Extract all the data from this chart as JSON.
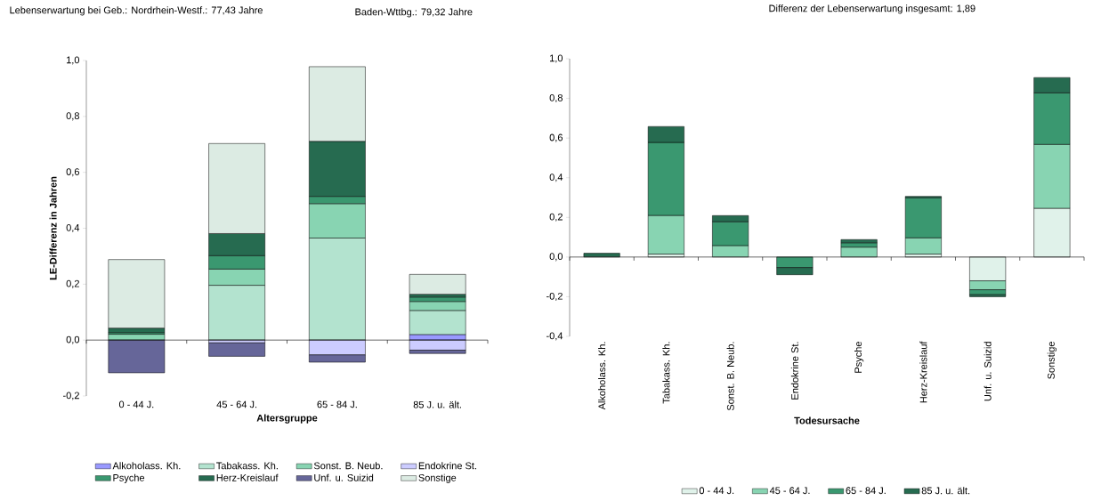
{
  "chart_data": [
    {
      "type": "bar",
      "stacked": true,
      "title": "Lebenserwartung bei Geb.: Nordrhein-Westf.: 77,43 Jahre",
      "annotations": [
        "Baden-Wttbg.: 79,32 Jahre"
      ],
      "xlabel": "Altersgruppe",
      "ylabel": "LE-Differenz in Jahren",
      "legend": "bottom",
      "categories": [
        "0 - 44 J.",
        "45 - 64 J.",
        "65 - 84 J.",
        "85 J. u. ält."
      ],
      "series": [
        {
          "name": "Alkoholass. Kh.",
          "color": "#9999ff",
          "values": [
            0,
            0,
            0,
            0.02
          ]
        },
        {
          "name": "Tabakass. Kh.",
          "color": "#b3e3cf",
          "values": [
            null,
            0.196,
            0.365,
            0.086
          ]
        },
        {
          "name": "Sonst. B. Neub.",
          "color": "#88d4b2",
          "values": [
            0.021,
            0.058,
            0.123,
            0.032
          ]
        },
        {
          "name": "Endokrine St.",
          "color": "#ccccff",
          "values": [
            0,
            -0.01,
            -0.053,
            -0.036
          ]
        },
        {
          "name": "Psyche",
          "color": "#3a9870",
          "values": [
            0.006,
            0.048,
            0.026,
            0.016
          ]
        },
        {
          "name": "Herz-Kreislauf",
          "color": "#266b50",
          "values": [
            0.016,
            0.079,
            0.197,
            0.01
          ]
        },
        {
          "name": "Unf. u. Suizid",
          "color": "#666699",
          "values": [
            -0.117,
            -0.048,
            -0.026,
            -0.012
          ]
        },
        {
          "name": "Sonstige",
          "color": "#dcebe3",
          "values": [
            0.245,
            0.322,
            0.267,
            0.071
          ]
        }
      ],
      "ylim": [
        -0.2,
        1.0
      ],
      "yticks": [
        {
          "value": -0.2,
          "label": "-0,2"
        },
        {
          "value": 0,
          "label": "0,0"
        },
        {
          "value": 0.2,
          "label": "0,2"
        },
        {
          "value": 0.4,
          "label": "0,4"
        },
        {
          "value": 0.6,
          "label": "0,6"
        },
        {
          "value": 0.8,
          "label": "0,8"
        },
        {
          "value": 1.0,
          "label": "1,0"
        }
      ]
    },
    {
      "type": "bar",
      "stacked": true,
      "title": "Differenz der Lebenserwartung insgesamt: 1,89",
      "xlabel": "Todesursache",
      "legend": "bottom",
      "categories": [
        "Alkoholass. Kh.",
        "Tabakass. Kh.",
        "Sonst. B. Neub.",
        "Endokrine St.",
        "Psyche",
        "Herz-Kreislauf",
        "Unf. u. Suizid",
        "Sonstige"
      ],
      "series": [
        {
          "name": "0 - 44 J.",
          "color": "#e0f2ea",
          "values": [
            0,
            0.015,
            0,
            0,
            0,
            0.015,
            -0.12,
            0.246
          ]
        },
        {
          "name": "45 - 64 J.",
          "color": "#88d4b2",
          "values": [
            0,
            0.195,
            0.058,
            null,
            0.05,
            0.082,
            -0.045,
            0.322
          ]
        },
        {
          "name": "65 - 84 J.",
          "color": "#3a9870",
          "values": [
            null,
            0.368,
            0.12,
            -0.053,
            0.022,
            0.202,
            -0.025,
            0.26
          ]
        },
        {
          "name": "85 J. u. ält.",
          "color": "#266b50",
          "values": [
            0.019,
            0.08,
            0.031,
            -0.036,
            0.016,
            0.007,
            -0.01,
            0.077
          ]
        }
      ],
      "ylim": [
        -0.4,
        1.0
      ],
      "yticks": [
        {
          "value": -0.4,
          "label": "-0,4"
        },
        {
          "value": -0.2,
          "label": "-0,2"
        },
        {
          "value": 0,
          "label": "0,0"
        },
        {
          "value": 0.2,
          "label": "0,2"
        },
        {
          "value": 0.4,
          "label": "0,4"
        },
        {
          "value": 0.6,
          "label": "0,6"
        },
        {
          "value": 0.8,
          "label": "0,8"
        },
        {
          "value": 1.0,
          "label": "1,0"
        }
      ]
    }
  ]
}
